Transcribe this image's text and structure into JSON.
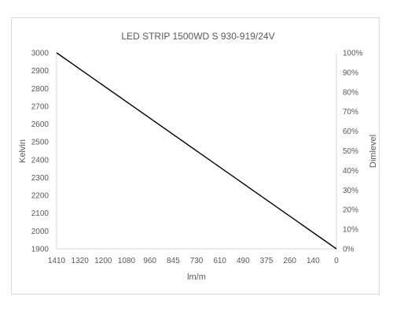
{
  "chart_data": {
    "type": "line",
    "title": "LED STRIP 1500WD S 930-919/24V",
    "xlabel": "lm/m",
    "ylabel": "Kelvin",
    "y2label": "Dimlevel",
    "x_tick_labels": [
      "1410",
      "1320",
      "1200",
      "1080",
      "960",
      "845",
      "730",
      "610",
      "490",
      "375",
      "260",
      "140",
      "0"
    ],
    "y_ticks": [
      "3000",
      "2900",
      "2800",
      "2700",
      "2600",
      "2500",
      "2400",
      "2300",
      "2200",
      "2100",
      "2000",
      "1900"
    ],
    "y2_ticks": [
      "100%",
      "90%",
      "80%",
      "70%",
      "60%",
      "50%",
      "40%",
      "30%",
      "20%",
      "10%",
      "0%"
    ],
    "ylim": [
      1900,
      3000
    ],
    "y2lim": [
      0,
      100
    ],
    "grid": false,
    "legend": false,
    "series": [
      {
        "x": [
          "1410",
          "0"
        ],
        "values": [
          3000,
          1900
        ],
        "color": "#000000"
      }
    ]
  }
}
